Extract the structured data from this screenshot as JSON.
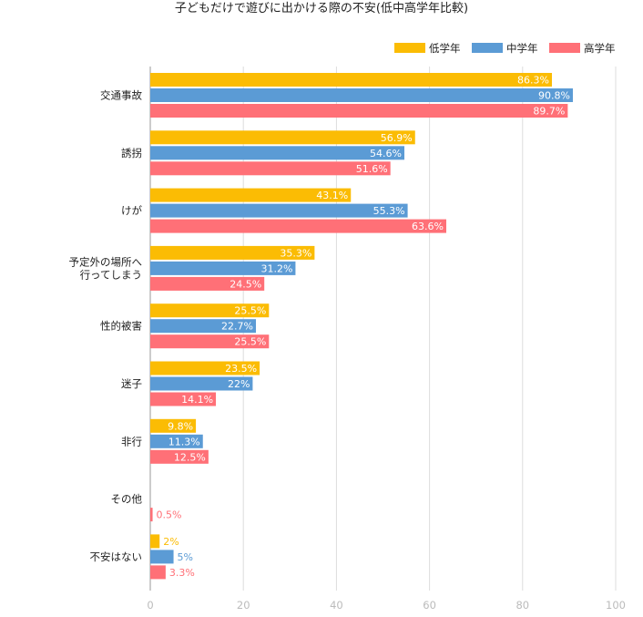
{
  "chart_data": {
    "type": "bar",
    "orientation": "horizontal",
    "title": "子どもだけで遊びに出かける際の不安(低中高学年比較)",
    "categories": [
      "交通事故",
      "誘拐",
      "けが",
      "予定外の場所へ\n行ってしまう",
      "性的被害",
      "迷子",
      "非行",
      "その他",
      "不安はない"
    ],
    "series": [
      {
        "name": "低学年",
        "color": "#FBBC04",
        "values": [
          86.3,
          56.9,
          43.1,
          35.3,
          25.5,
          23.5,
          9.8,
          null,
          2
        ],
        "labels": [
          "86.3%",
          "56.9%",
          "43.1%",
          "35.3%",
          "25.5%",
          "23.5%",
          "9.8%",
          null,
          "2%"
        ]
      },
      {
        "name": "中学年",
        "color": "#5B9BD5",
        "values": [
          90.8,
          54.6,
          55.3,
          31.2,
          22.7,
          22,
          11.3,
          null,
          5
        ],
        "labels": [
          "90.8%",
          "54.6%",
          "55.3%",
          "31.2%",
          "22.7%",
          "22%",
          "11.3%",
          null,
          "5%"
        ]
      },
      {
        "name": "高学年",
        "color": "#FF7077",
        "values": [
          89.7,
          51.6,
          63.6,
          24.5,
          25.5,
          14.1,
          12.5,
          0.5,
          3.3
        ],
        "labels": [
          "89.7%",
          "51.6%",
          "63.6%",
          "24.5%",
          "25.5%",
          "14.1%",
          "12.5%",
          "0.5%",
          "3.3%"
        ]
      }
    ],
    "x_ticks": [
      "0",
      "20",
      "40",
      "60",
      "80",
      "100"
    ],
    "xlim": [
      0,
      100
    ],
    "grid": true,
    "legend_position": "top-right",
    "axis_color": "#cccccc",
    "tick_label_color": "#bbbbbb"
  }
}
